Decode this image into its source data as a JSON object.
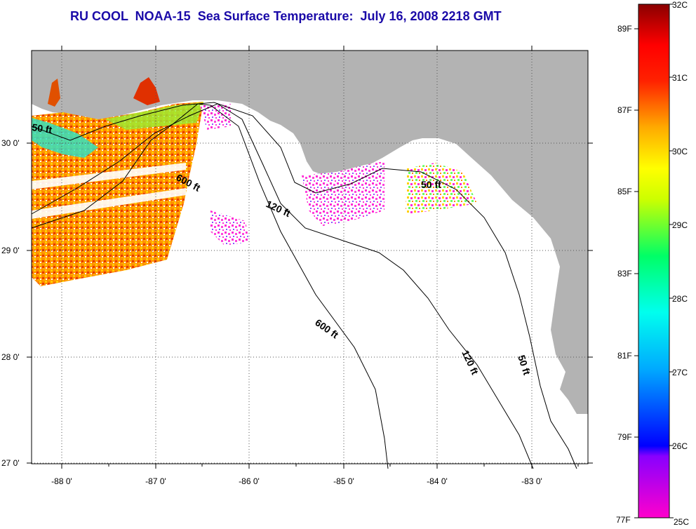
{
  "title": "RU COOL  NOAA-15  Sea Surface Temperature:  July 16, 2008 2218 GMT",
  "axes": {
    "x_ticks": [
      "-88 0'",
      "-87 0'",
      "-86 0'",
      "-85 0'",
      "-84 0'",
      "-83 0'"
    ],
    "y_ticks": [
      "30 0'",
      "29 0'",
      "28 0'",
      "27 0'"
    ]
  },
  "contours": {
    "labels": [
      "50 ft",
      "600 ft",
      "120 ft",
      "50 ft",
      "600 ft",
      "120 ft",
      "50 ft"
    ]
  },
  "colorbar": {
    "celsius": [
      "32C",
      "31C",
      "30C",
      "29C",
      "28C",
      "27C",
      "26C",
      "25C"
    ],
    "fahrenheit": [
      "89F",
      "87F",
      "85F",
      "83F",
      "81F",
      "79F",
      "77F"
    ]
  },
  "colors": {
    "land": "#b3b3b3",
    "title": "#1a0aa8",
    "warm": "#ff7a00",
    "hot": "#e00000",
    "cool": "#00e0e0",
    "pink": "#ff2ad4"
  }
}
